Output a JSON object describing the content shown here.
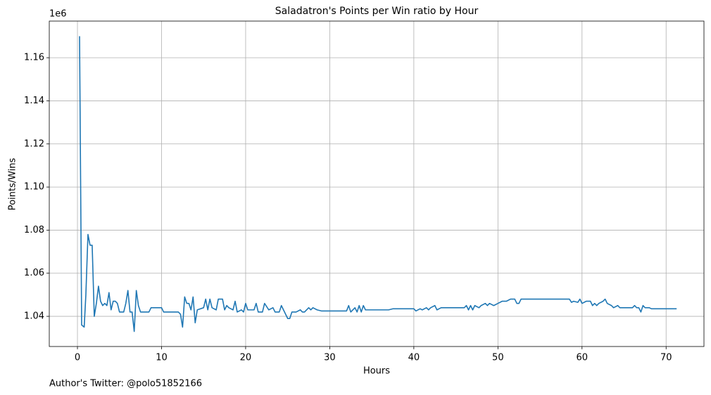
{
  "chart_data": {
    "type": "line",
    "title": "Saladatron's Points per Win ratio by Hour",
    "xlabel": "Hours",
    "ylabel": "Points/Wins",
    "y_offset_label": "1e6",
    "footnote": "Author's Twitter: @polo51852166",
    "color": "#1f77b4",
    "grid": true,
    "xlim": [
      -3.35,
      74.5
    ],
    "ylim": [
      1.026,
      1.177
    ],
    "xticks": [
      0,
      10,
      20,
      30,
      40,
      50,
      60,
      70
    ],
    "yticks": [
      1.04,
      1.06,
      1.08,
      {
        "value": 1.1,
        "label": "1.10"
      },
      1.12,
      1.14,
      1.16
    ],
    "x": [
      0.25,
      0.5,
      0.8,
      1.0,
      1.25,
      1.5,
      1.75,
      2.0,
      2.25,
      2.5,
      2.75,
      3.0,
      3.25,
      3.5,
      3.75,
      4.0,
      4.25,
      4.5,
      4.75,
      5.0,
      5.25,
      5.5,
      5.75,
      6.0,
      6.25,
      6.5,
      6.75,
      7.0,
      7.25,
      7.5,
      8.0,
      8.5,
      8.75,
      10.0,
      10.25,
      12.0,
      12.25,
      12.5,
      12.75,
      13.0,
      13.25,
      13.5,
      13.75,
      14.0,
      14.25,
      15.0,
      15.25,
      15.5,
      15.75,
      16.0,
      16.5,
      16.75,
      17.25,
      17.5,
      17.75,
      18.0,
      18.5,
      18.75,
      19.0,
      19.5,
      19.75,
      20.0,
      20.25,
      21.0,
      21.25,
      21.5,
      22.0,
      22.25,
      22.75,
      23.25,
      23.5,
      24.0,
      24.25,
      24.75,
      25.0,
      25.25,
      25.5,
      26.0,
      26.5,
      26.75,
      27.0,
      27.5,
      27.75,
      28.0,
      28.5,
      29.0,
      32.0,
      32.25,
      32.5,
      33.0,
      33.25,
      33.5,
      33.75,
      34.0,
      34.25,
      37.0,
      37.5,
      40.0,
      40.25,
      40.75,
      41.0,
      41.5,
      41.75,
      42.0,
      42.5,
      42.75,
      43.25,
      46.0,
      46.25,
      46.5,
      46.75,
      47.0,
      47.25,
      47.75,
      48.0,
      48.5,
      48.75,
      49.0,
      49.5,
      50.0,
      50.5,
      51.0,
      51.5,
      52.0,
      52.25,
      52.5,
      52.75,
      58.5,
      58.75,
      59.0,
      59.5,
      59.75,
      60.0,
      60.5,
      61.0,
      61.25,
      61.5,
      61.75,
      62.0,
      62.5,
      62.75,
      63.0,
      63.5,
      63.75,
      64.25,
      64.5,
      66.0,
      66.25,
      66.5,
      66.75,
      67.0,
      67.25,
      67.5,
      68.0,
      68.25,
      71.25
    ],
    "values": [
      1.17,
      1.036,
      1.035,
      1.05,
      1.078,
      1.073,
      1.073,
      1.04,
      1.046,
      1.054,
      1.047,
      1.045,
      1.046,
      1.045,
      1.051,
      1.043,
      1.047,
      1.047,
      1.046,
      1.042,
      1.042,
      1.042,
      1.046,
      1.052,
      1.042,
      1.042,
      1.033,
      1.052,
      1.045,
      1.042,
      1.042,
      1.042,
      1.044,
      1.044,
      1.042,
      1.042,
      1.041,
      1.035,
      1.049,
      1.046,
      1.046,
      1.043,
      1.049,
      1.037,
      1.043,
      1.044,
      1.048,
      1.043,
      1.048,
      1.044,
      1.043,
      1.048,
      1.048,
      1.043,
      1.045,
      1.044,
      1.043,
      1.047,
      1.042,
      1.043,
      1.042,
      1.046,
      1.043,
      1.043,
      1.046,
      1.042,
      1.042,
      1.046,
      1.043,
      1.044,
      1.042,
      1.042,
      1.045,
      1.041,
      1.039,
      1.039,
      1.042,
      1.042,
      1.043,
      1.042,
      1.042,
      1.044,
      1.043,
      1.044,
      1.043,
      1.0425,
      1.0425,
      1.045,
      1.042,
      1.044,
      1.042,
      1.045,
      1.042,
      1.045,
      1.043,
      1.043,
      1.0435,
      1.0435,
      1.0425,
      1.0435,
      1.043,
      1.044,
      1.043,
      1.044,
      1.045,
      1.043,
      1.044,
      1.044,
      1.045,
      1.043,
      1.045,
      1.043,
      1.045,
      1.044,
      1.045,
      1.046,
      1.045,
      1.046,
      1.045,
      1.046,
      1.047,
      1.047,
      1.048,
      1.048,
      1.046,
      1.046,
      1.048,
      1.048,
      1.0465,
      1.047,
      1.0465,
      1.048,
      1.046,
      1.047,
      1.047,
      1.045,
      1.046,
      1.045,
      1.046,
      1.047,
      1.048,
      1.046,
      1.045,
      1.044,
      1.045,
      1.044,
      1.044,
      1.045,
      1.044,
      1.044,
      1.042,
      1.045,
      1.044,
      1.044,
      1.0435,
      1.0435
    ]
  }
}
